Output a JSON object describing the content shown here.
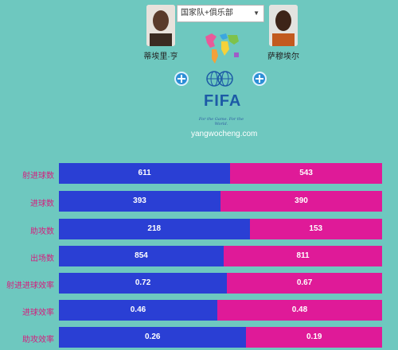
{
  "select": {
    "value": "国家队+俱乐部"
  },
  "players": {
    "left": {
      "name": "蒂埃里·亨"
    },
    "right": {
      "name": "萨穆埃尔"
    }
  },
  "logo": {
    "text": "FIFA",
    "slogan": "For the Game. For the World."
  },
  "site": {
    "url": "yangwocheng.com"
  },
  "colors": {
    "left_bar": "#2a3fd4",
    "right_bar": "#df1a98",
    "label": "#d41f7e",
    "background": "#6ec8bf"
  },
  "stats": [
    {
      "label": "射进球数",
      "left": "611",
      "right": "543",
      "left_share": 0.53
    },
    {
      "label": "进球数",
      "left": "393",
      "right": "390",
      "left_share": 0.5
    },
    {
      "label": "助攻数",
      "left": "218",
      "right": "153",
      "left_share": 0.59
    },
    {
      "label": "出场数",
      "left": "854",
      "right": "811",
      "left_share": 0.51
    },
    {
      "label": "射进进球效率",
      "left": "0.72",
      "right": "0.67",
      "left_share": 0.52
    },
    {
      "label": "进球效率",
      "left": "0.46",
      "right": "0.48",
      "left_share": 0.49
    },
    {
      "label": "助攻效率",
      "left": "0.26",
      "right": "0.19",
      "left_share": 0.58
    }
  ]
}
